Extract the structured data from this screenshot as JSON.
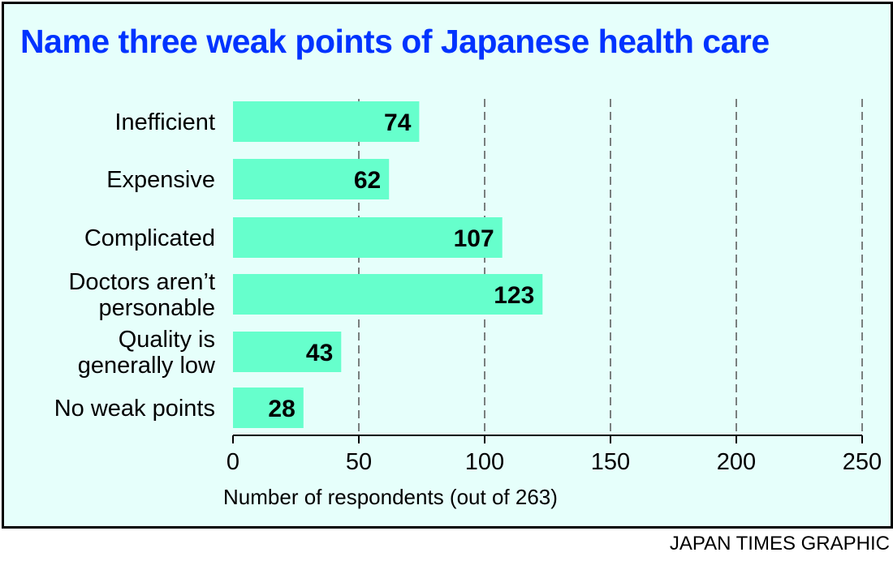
{
  "chart_data": {
    "type": "bar",
    "orientation": "horizontal",
    "title": "Name three weak points of Japanese health care",
    "xlabel": "Number of respondents (out of 263)",
    "ylabel": "",
    "categories": [
      [
        "Inefficient"
      ],
      [
        "Expensive"
      ],
      [
        "Complicated"
      ],
      [
        "Doctors aren’t",
        "personable"
      ],
      [
        "Quality is",
        "generally low"
      ],
      [
        "No weak points"
      ]
    ],
    "values": [
      74,
      62,
      107,
      123,
      43,
      28
    ],
    "xlim": [
      0,
      250
    ],
    "xticks": [
      0,
      50,
      100,
      150,
      200,
      250
    ],
    "grid": "vertical-dashed",
    "legend": "none",
    "data_labels": true
  },
  "colors": {
    "bar": "#66ffcc",
    "background": "#e6fffb",
    "title": "#0033ff",
    "grid": "#555555",
    "text": "#000000"
  },
  "credit": "JAPAN TIMES GRAPHIC"
}
